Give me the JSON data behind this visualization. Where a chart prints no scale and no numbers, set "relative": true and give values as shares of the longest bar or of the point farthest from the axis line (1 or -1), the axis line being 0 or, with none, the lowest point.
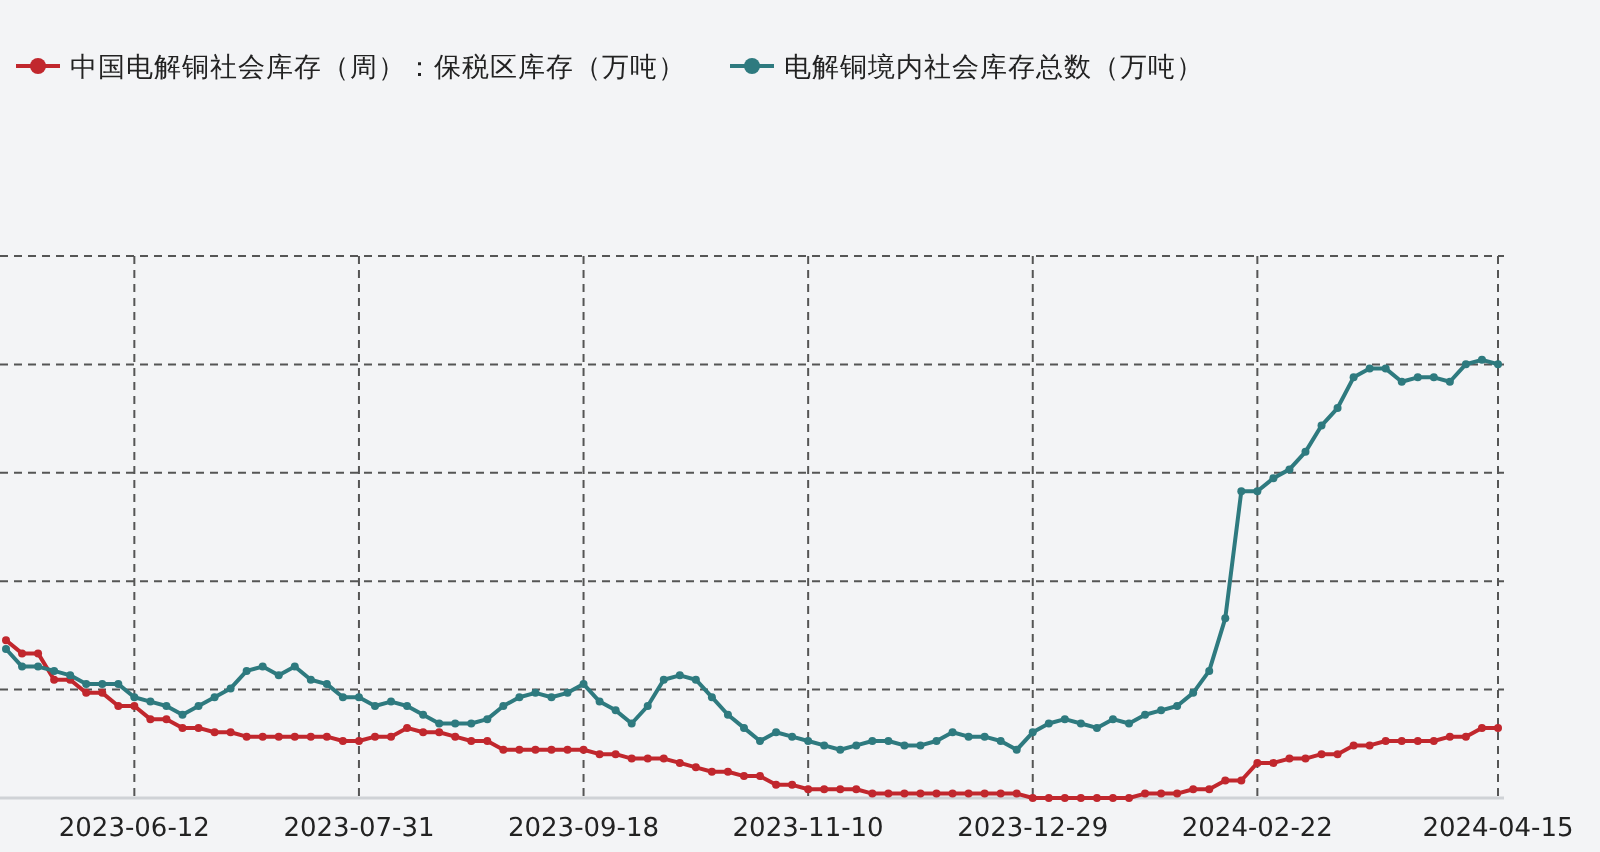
{
  "chart_data": {
    "type": "line",
    "relative": true,
    "grid": true,
    "legend": "top left",
    "marker": "circle",
    "line_style": "solid",
    "categories": [
      null,
      null,
      null,
      null,
      null,
      null,
      null,
      null,
      "2023-06-12",
      null,
      null,
      null,
      null,
      null,
      null,
      null,
      null,
      null,
      null,
      null,
      null,
      null,
      "2023-07-31",
      null,
      null,
      null,
      null,
      null,
      null,
      null,
      null,
      null,
      null,
      null,
      null,
      null,
      "2023-09-18",
      null,
      null,
      null,
      null,
      null,
      null,
      null,
      null,
      null,
      null,
      null,
      null,
      null,
      "2023-11-10",
      null,
      null,
      null,
      null,
      null,
      null,
      null,
      null,
      null,
      null,
      null,
      null,
      null,
      "2023-12-29",
      null,
      null,
      null,
      null,
      null,
      null,
      null,
      null,
      null,
      null,
      null,
      null,
      null,
      "2024-02-22",
      null,
      null,
      null,
      null,
      null,
      null,
      null,
      null,
      null,
      null,
      null,
      null,
      null,
      null,
      "2024-04-15"
    ],
    "series": [
      {
        "name": "中国电解铜社会库存（周）：保税区库存（万吨）",
        "color": "#c1272d",
        "values": [
          0.36,
          0.33,
          0.33,
          0.27,
          0.27,
          0.24,
          0.24,
          0.21,
          0.21,
          0.18,
          0.18,
          0.16,
          0.16,
          0.15,
          0.15,
          0.14,
          0.14,
          0.14,
          0.14,
          0.14,
          0.14,
          0.13,
          0.13,
          0.14,
          0.14,
          0.16,
          0.15,
          0.15,
          0.14,
          0.13,
          0.13,
          0.11,
          0.11,
          0.11,
          0.11,
          0.11,
          0.11,
          0.1,
          0.1,
          0.09,
          0.09,
          0.09,
          0.08,
          0.07,
          0.06,
          0.06,
          0.05,
          0.05,
          0.03,
          0.03,
          0.02,
          0.02,
          0.02,
          0.02,
          0.01,
          0.01,
          0.01,
          0.01,
          0.01,
          0.01,
          0.01,
          0.01,
          0.01,
          0.01,
          0.0,
          0.0,
          0.0,
          0.0,
          0.0,
          0.0,
          0.0,
          0.01,
          0.01,
          0.01,
          0.02,
          0.02,
          0.04,
          0.04,
          0.08,
          0.08,
          0.09,
          0.09,
          0.1,
          0.1,
          0.12,
          0.12,
          0.13,
          0.13,
          0.13,
          0.13,
          0.14,
          0.14,
          0.16,
          0.16
        ]
      },
      {
        "name": "电解铜境内社会库存总数（万吨）",
        "color": "#2e7a7f",
        "values": [
          0.34,
          0.3,
          0.3,
          0.29,
          0.28,
          0.26,
          0.26,
          0.26,
          0.23,
          0.22,
          0.21,
          0.19,
          0.21,
          0.23,
          0.25,
          0.29,
          0.3,
          0.28,
          0.3,
          0.27,
          0.26,
          0.23,
          0.23,
          0.21,
          0.22,
          0.21,
          0.19,
          0.17,
          0.17,
          0.17,
          0.18,
          0.21,
          0.23,
          0.24,
          0.23,
          0.24,
          0.26,
          0.22,
          0.2,
          0.17,
          0.21,
          0.27,
          0.28,
          0.27,
          0.23,
          0.19,
          0.16,
          0.13,
          0.15,
          0.14,
          0.13,
          0.12,
          0.11,
          0.12,
          0.13,
          0.13,
          0.12,
          0.12,
          0.13,
          0.15,
          0.14,
          0.14,
          0.13,
          0.11,
          0.15,
          0.17,
          0.18,
          0.17,
          0.16,
          0.18,
          0.17,
          0.19,
          0.2,
          0.21,
          0.24,
          0.29,
          0.41,
          0.7,
          0.7,
          0.73,
          0.75,
          0.79,
          0.85,
          0.89,
          0.96,
          0.98,
          0.98,
          0.95,
          0.96,
          0.96,
          0.95,
          0.99,
          1.0,
          0.99
        ]
      }
    ]
  }
}
